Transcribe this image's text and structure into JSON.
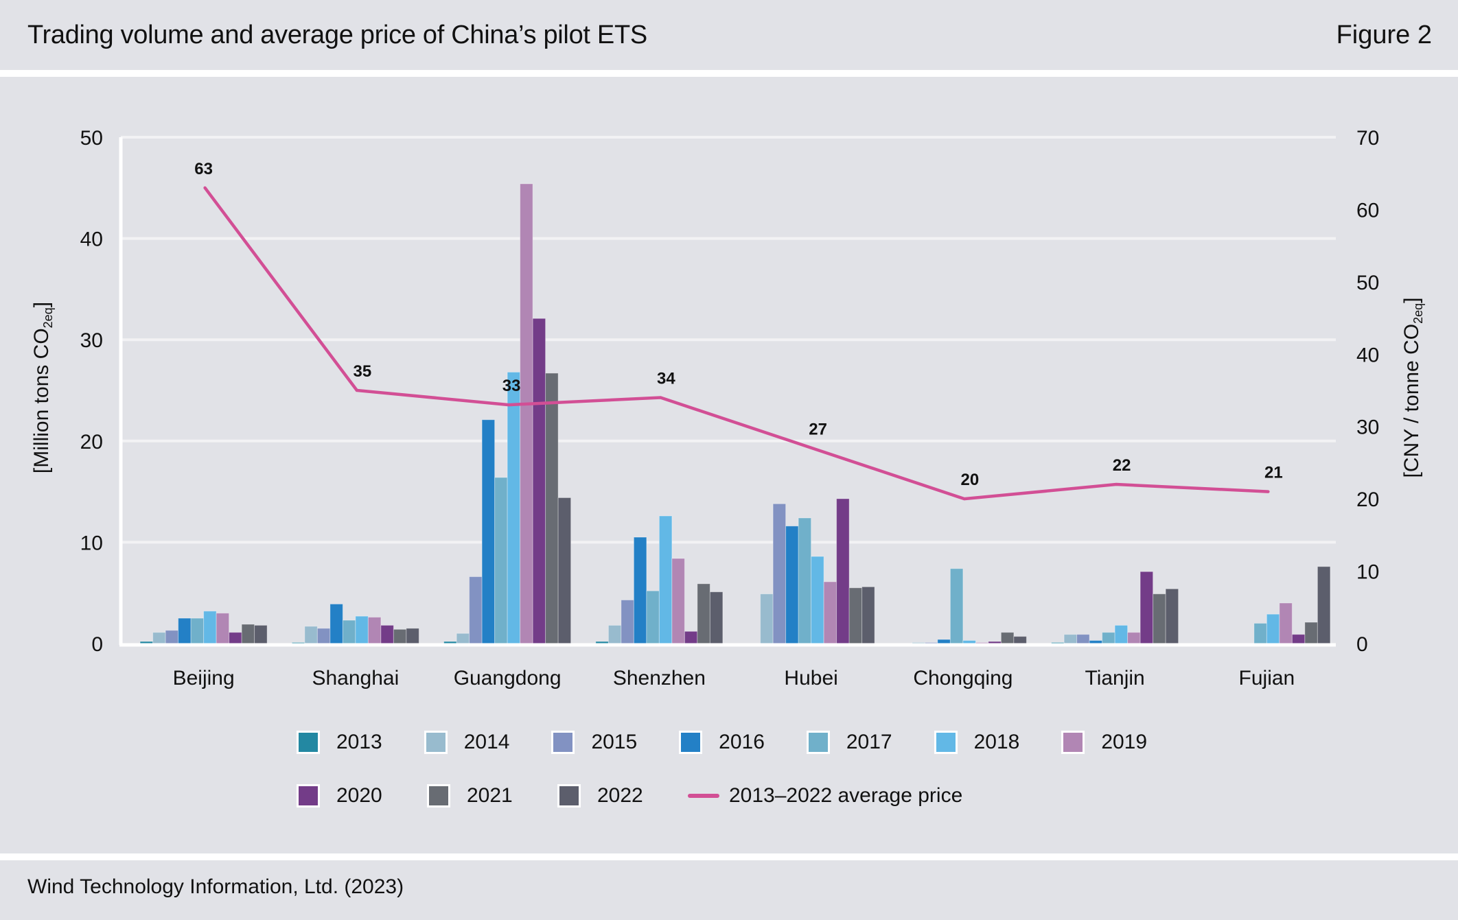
{
  "header": {
    "title": "Trading volume and average price of China’s pilot ETS",
    "figure_label": "Figure 2"
  },
  "footer": {
    "source": "Wind Technology Information, Ltd. (2023)"
  },
  "chart_data": {
    "type": "bar",
    "title": "Trading volume and average price of China’s pilot ETS",
    "categories": [
      "Beijing",
      "Shanghai",
      "Guangdong",
      "Shenzhen",
      "Hubei",
      "Chongqing",
      "Tianjin",
      "Fujian"
    ],
    "ylabel": "[Million tons CO2eq]",
    "ylabel_main": "[Million tons CO",
    "ylabel_sub": "2eq",
    "ylabel_end": "]",
    "y2label_main": "[CNY / tonne CO",
    "y2label_sub": "2eq",
    "y2label_end": "]",
    "ylim": [
      0,
      50
    ],
    "y2lim": [
      0,
      70
    ],
    "yticks": [
      0,
      10,
      20,
      30,
      40,
      50
    ],
    "y2ticks": [
      0,
      10,
      20,
      30,
      40,
      50,
      60,
      70
    ],
    "grid": true,
    "legend_position": "bottom",
    "series": [
      {
        "name": "2013",
        "color": "#2388a2",
        "values": [
          0.2,
          0.1,
          0.2,
          0.2,
          0,
          0,
          0.1,
          0
        ]
      },
      {
        "name": "2014",
        "color": "#98bbce",
        "values": [
          1.1,
          1.7,
          1.0,
          1.8,
          4.9,
          0.1,
          0.9,
          0
        ]
      },
      {
        "name": "2015",
        "color": "#8292c2",
        "values": [
          1.3,
          1.5,
          6.6,
          4.3,
          13.8,
          0.1,
          0.9,
          0
        ]
      },
      {
        "name": "2016",
        "color": "#2380c6",
        "values": [
          2.5,
          3.9,
          22.1,
          10.5,
          11.6,
          0.4,
          0.3,
          0
        ]
      },
      {
        "name": "2017",
        "color": "#70b0ca",
        "values": [
          2.5,
          2.3,
          16.4,
          5.2,
          12.4,
          7.4,
          1.1,
          2.0
        ]
      },
      {
        "name": "2018",
        "color": "#62b8e6",
        "values": [
          3.2,
          2.7,
          26.8,
          12.6,
          8.6,
          0.3,
          1.8,
          2.9
        ]
      },
      {
        "name": "2019",
        "color": "#b186b4",
        "values": [
          3.0,
          2.6,
          45.4,
          8.4,
          6.1,
          0.1,
          1.1,
          4.0
        ]
      },
      {
        "name": "2020",
        "color": "#733c88",
        "values": [
          1.1,
          1.8,
          32.1,
          1.2,
          14.3,
          0.2,
          7.1,
          0.9
        ]
      },
      {
        "name": "2021",
        "color": "#686c73",
        "values": [
          1.9,
          1.4,
          26.7,
          5.9,
          5.5,
          1.1,
          4.9,
          2.1
        ]
      },
      {
        "name": "2022",
        "color": "#5c5e6c",
        "values": [
          1.8,
          1.5,
          14.4,
          5.1,
          5.6,
          0.7,
          5.4,
          7.6
        ]
      }
    ],
    "line_series": {
      "name": "2013–2022 average price",
      "color": "#d24f95",
      "axis": "right",
      "values": [
        63,
        35,
        33,
        34,
        27,
        20,
        22,
        21
      ],
      "labels": [
        "63",
        "35",
        "33",
        "34",
        "27",
        "20",
        "22",
        "21"
      ]
    }
  }
}
